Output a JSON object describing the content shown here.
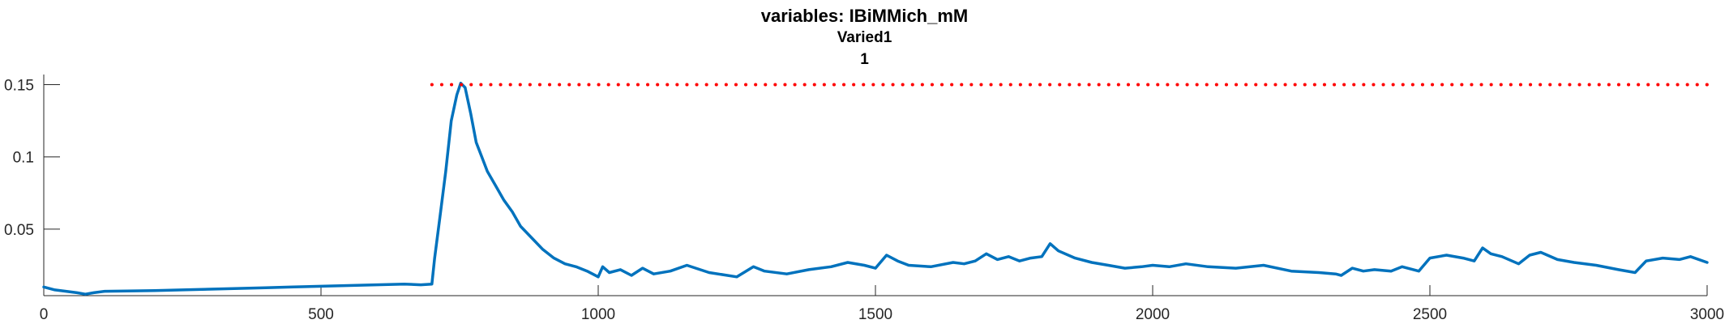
{
  "title": "variables: IBiMMich_mM",
  "subtitle": "Varied1",
  "subtitle2": "1",
  "chart_data": {
    "type": "line",
    "title": "variables: IBiMMich_mM",
    "subtitle": [
      "Varied1",
      "1"
    ],
    "xlabel": "",
    "ylabel": "",
    "xlim": [
      0,
      3000
    ],
    "ylim": [
      0.004,
      0.157
    ],
    "x_ticks": [
      0,
      500,
      1000,
      1500,
      2000,
      2500,
      3000
    ],
    "x_tick_labels": [
      "0",
      "500",
      "1000",
      "1500",
      "2000",
      "2500",
      "3000"
    ],
    "y_ticks": [
      0.05,
      0.1,
      0.15
    ],
    "y_tick_labels": [
      "0.05",
      "0.1",
      "0.15"
    ],
    "grid": false,
    "legend": "none",
    "series": [
      {
        "color": "#0072BD",
        "style": "solid",
        "x": [
          0,
          20,
          40,
          60,
          75,
          90,
          110,
          150,
          200,
          250,
          300,
          350,
          400,
          450,
          500,
          550,
          600,
          650,
          680,
          700,
          705,
          715,
          725,
          735,
          745,
          752,
          760,
          770,
          780,
          790,
          800,
          815,
          830,
          845,
          860,
          880,
          900,
          920,
          940,
          960,
          980,
          1000,
          1008,
          1020,
          1040,
          1060,
          1080,
          1100,
          1130,
          1160,
          1200,
          1250,
          1280,
          1300,
          1340,
          1380,
          1420,
          1450,
          1480,
          1500,
          1520,
          1540,
          1560,
          1600,
          1640,
          1660,
          1680,
          1700,
          1720,
          1740,
          1760,
          1780,
          1800,
          1815,
          1830,
          1860,
          1890,
          1920,
          1950,
          1980,
          2000,
          2030,
          2060,
          2100,
          2150,
          2200,
          2250,
          2300,
          2330,
          2340,
          2360,
          2380,
          2400,
          2430,
          2450,
          2480,
          2500,
          2530,
          2560,
          2580,
          2595,
          2610,
          2630,
          2660,
          2680,
          2700,
          2730,
          2760,
          2800,
          2840,
          2870,
          2890,
          2920,
          2950,
          2970,
          3000
        ],
        "y": [
          0.01,
          0.008,
          0.007,
          0.006,
          0.005,
          0.006,
          0.007,
          0.0072,
          0.0075,
          0.008,
          0.0085,
          0.009,
          0.0095,
          0.01,
          0.0105,
          0.011,
          0.0115,
          0.012,
          0.0115,
          0.012,
          0.03,
          0.06,
          0.09,
          0.125,
          0.143,
          0.151,
          0.148,
          0.13,
          0.11,
          0.1,
          0.09,
          0.08,
          0.07,
          0.062,
          0.052,
          0.044,
          0.036,
          0.03,
          0.026,
          0.024,
          0.021,
          0.017,
          0.024,
          0.02,
          0.022,
          0.018,
          0.023,
          0.019,
          0.021,
          0.025,
          0.02,
          0.017,
          0.024,
          0.021,
          0.019,
          0.022,
          0.024,
          0.027,
          0.025,
          0.023,
          0.032,
          0.028,
          0.025,
          0.024,
          0.027,
          0.026,
          0.028,
          0.033,
          0.029,
          0.031,
          0.028,
          0.03,
          0.031,
          0.04,
          0.035,
          0.03,
          0.027,
          0.025,
          0.023,
          0.024,
          0.025,
          0.024,
          0.026,
          0.024,
          0.023,
          0.025,
          0.021,
          0.02,
          0.019,
          0.018,
          0.023,
          0.021,
          0.022,
          0.021,
          0.024,
          0.021,
          0.03,
          0.032,
          0.03,
          0.028,
          0.037,
          0.033,
          0.031,
          0.026,
          0.032,
          0.034,
          0.029,
          0.027,
          0.025,
          0.022,
          0.02,
          0.028,
          0.03,
          0.029,
          0.031,
          0.027
        ]
      },
      {
        "color": "#FF0000",
        "style": "dotted",
        "x": [
          700,
          3000
        ],
        "y": [
          0.15,
          0.15
        ]
      }
    ]
  }
}
